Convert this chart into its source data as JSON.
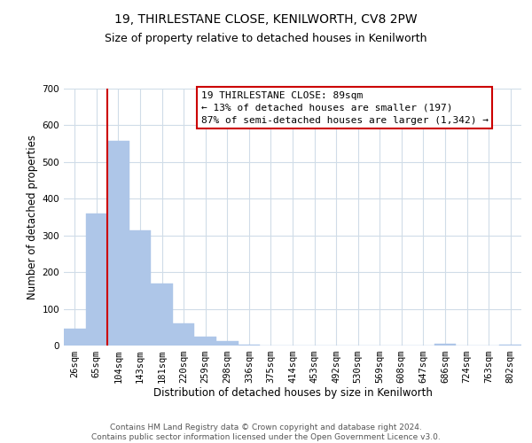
{
  "title": "19, THIRLESTANE CLOSE, KENILWORTH, CV8 2PW",
  "subtitle": "Size of property relative to detached houses in Kenilworth",
  "xlabel": "Distribution of detached houses by size in Kenilworth",
  "ylabel": "Number of detached properties",
  "bar_labels": [
    "26sqm",
    "65sqm",
    "104sqm",
    "143sqm",
    "181sqm",
    "220sqm",
    "259sqm",
    "298sqm",
    "336sqm",
    "375sqm",
    "414sqm",
    "453sqm",
    "492sqm",
    "530sqm",
    "569sqm",
    "608sqm",
    "647sqm",
    "686sqm",
    "724sqm",
    "763sqm",
    "802sqm"
  ],
  "bar_values": [
    45,
    360,
    558,
    315,
    168,
    60,
    25,
    12,
    3,
    0,
    0,
    0,
    0,
    0,
    0,
    0,
    0,
    5,
    0,
    0,
    3
  ],
  "bar_color": "#aec6e8",
  "bar_edge_color": "#aec6e8",
  "vline_color": "#cc0000",
  "ylim": [
    0,
    700
  ],
  "yticks": [
    0,
    100,
    200,
    300,
    400,
    500,
    600,
    700
  ],
  "annotation_lines": [
    "19 THIRLESTANE CLOSE: 89sqm",
    "← 13% of detached houses are smaller (197)",
    "87% of semi-detached houses are larger (1,342) →"
  ],
  "annotation_box_color": "#ffffff",
  "annotation_box_edgecolor": "#cc0000",
  "footer_line1": "Contains HM Land Registry data © Crown copyright and database right 2024.",
  "footer_line2": "Contains public sector information licensed under the Open Government Licence v3.0.",
  "bg_color": "#ffffff",
  "grid_color": "#d0dce8",
  "title_fontsize": 10,
  "subtitle_fontsize": 9,
  "axis_label_fontsize": 8.5,
  "tick_fontsize": 7.5,
  "annotation_fontsize": 8,
  "footer_fontsize": 6.5
}
